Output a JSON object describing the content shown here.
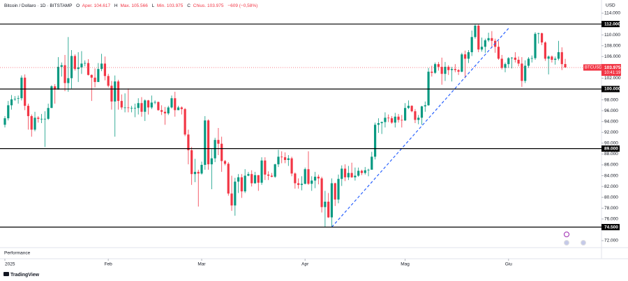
{
  "chart_data": {
    "type": "candlestick",
    "header": {
      "symbol": "Bitcoin / Dollaro · 1D · BITSTAMP",
      "o": "O",
      "open": "Aper. 104.617",
      "h": "H",
      "high": "Max. 105.566",
      "l": "L",
      "low": "Min. 103.975",
      "c": "C",
      "close": "Chius. 103.975",
      "change": "−609 (−0,58%)"
    },
    "currency": "USD",
    "pane_label": "Performance",
    "brand": "TradingView",
    "colors": {
      "up": "#089981",
      "down": "#f23645"
    },
    "xticks": [
      {
        "value": 0,
        "label": "2025"
      },
      {
        "value": 31,
        "label": "Feb"
      },
      {
        "value": 59,
        "label": "Mar"
      },
      {
        "value": 90,
        "label": "Apr"
      },
      {
        "value": 120,
        "label": "Mag"
      },
      {
        "value": 151,
        "label": "Giu"
      }
    ],
    "ylim": [
      72,
      114
    ],
    "yticks": [
      {
        "value": 72,
        "label": "72.000"
      },
      {
        "value": 76,
        "label": "76.000"
      },
      {
        "value": 78,
        "label": "78.000"
      },
      {
        "value": 80,
        "label": "80.000"
      },
      {
        "value": 82,
        "label": "82.000"
      },
      {
        "value": 84,
        "label": "84.000"
      },
      {
        "value": 86,
        "label": "86.000"
      },
      {
        "value": 88,
        "label": "88.000"
      },
      {
        "value": 90,
        "label": "90.000"
      },
      {
        "value": 92,
        "label": "92.000"
      },
      {
        "value": 94,
        "label": "94.000"
      },
      {
        "value": 96,
        "label": "96.000"
      },
      {
        "value": 98,
        "label": "98.000"
      },
      {
        "value": 102,
        "label": "102.000"
      },
      {
        "value": 106,
        "label": "106.000"
      },
      {
        "value": 108,
        "label": "108.000"
      },
      {
        "value": 110,
        "label": "110.000"
      },
      {
        "value": 114,
        "label": "114.000"
      }
    ],
    "levels": [
      {
        "value": 112,
        "label": "112.000"
      },
      {
        "value": 100,
        "label": "100.000"
      },
      {
        "value": 89,
        "label": "89.000"
      },
      {
        "value": 74.5,
        "label": "74.500"
      }
    ],
    "last": {
      "name": "BTCUSD",
      "value": 103.975,
      "label": "103.975",
      "countdown": "10:41:19"
    },
    "trendline": {
      "x": [
        98,
        151
      ],
      "y": [
        74.5,
        111.2
      ]
    },
    "open": [
      93.4,
      94.6,
      97.0,
      98.1,
      98.2,
      98.3,
      102.1,
      96.9,
      95.0,
      92.5,
      94.7,
      94.5,
      94.5,
      94.5,
      96.5,
      100.5,
      99.9,
      104.1,
      104.4,
      101.1,
      102.0,
      106.1,
      103.7,
      104.0,
      104.7,
      104.8,
      102.6,
      102.1,
      101.3,
      103.7,
      104.7,
      102.4,
      100.6,
      97.7,
      101.4,
      97.8,
      96.6,
      96.6,
      96.5,
      96.5,
      96.5,
      97.4,
      95.8,
      97.9,
      96.6,
      97.5,
      97.6,
      96.1,
      95.8,
      95.5,
      96.6,
      98.3,
      96.1,
      96.6,
      96.3,
      91.6,
      88.7,
      84.3,
      84.7,
      84.4,
      86.0,
      94.2,
      86.1,
      87.2,
      90.6,
      89.9,
      86.7,
      86.2,
      80.7,
      78.5,
      82.9,
      83.7,
      81.1,
      84.0,
      84.3,
      82.6,
      84.1,
      82.7,
      86.8,
      84.2,
      84.0,
      83.8,
      86.1,
      87.5,
      87.4,
      86.9,
      87.2,
      84.4,
      82.6,
      82.3,
      82.5,
      85.2,
      82.5,
      83.1,
      83.8,
      83.5,
      78.2,
      79.2,
      76.3,
      82.6,
      79.6,
      83.4,
      85.3,
      83.7,
      84.5,
      83.7,
      84.0,
      84.9,
      84.5,
      85.0,
      85.1,
      87.5,
      93.4,
      93.7,
      93.9,
      94.7,
      94.6,
      93.8,
      94.9,
      94.3,
      94.2,
      96.5,
      96.9,
      95.9,
      94.3,
      94.7,
      96.8,
      97.0,
      103.2,
      103.0,
      104.6,
      104.1,
      102.8,
      104.1,
      103.5,
      103.7,
      103.5,
      103.2,
      106.4,
      105.6,
      106.8,
      109.6,
      111.7,
      107.3,
      107.8,
      109.0,
      109.4,
      108.9,
      107.8,
      105.6,
      103.9,
      104.6,
      105.7,
      105.8,
      105.4,
      104.7,
      101.5,
      104.3,
      105.6,
      105.7,
      110.2,
      110.3,
      108.6,
      105.6,
      106.0,
      105.4,
      105.6,
      106.8,
      104.617
    ],
    "high": [
      95.0,
      97.8,
      98.9,
      98.7,
      98.8,
      102.5,
      102.7,
      97.3,
      95.3,
      95.8,
      95.0,
      95.4,
      95.9,
      97.3,
      100.7,
      100.9,
      105.9,
      104.9,
      106.3,
      109.6,
      107.2,
      106.4,
      106.8,
      107.0,
      105.3,
      105.5,
      102.7,
      103.8,
      104.8,
      106.5,
      106.0,
      102.8,
      101.5,
      102.5,
      101.7,
      99.0,
      99.2,
      100.1,
      96.9,
      97.3,
      98.3,
      98.5,
      98.1,
      98.0,
      98.8,
      97.9,
      97.7,
      97.0,
      96.7,
      96.9,
      98.8,
      99.5,
      96.9,
      96.8,
      96.5,
      92.5,
      89.3,
      87.1,
      85.1,
      86.6,
      95.0,
      94.4,
      88.9,
      91.0,
      92.8,
      91.2,
      86.9,
      86.5,
      84.0,
      83.6,
      84.3,
      84.3,
      85.2,
      84.7,
      85.0,
      84.7,
      84.1,
      87.4,
      87.4,
      84.8,
      84.5,
      86.2,
      88.8,
      88.5,
      88.3,
      87.8,
      87.5,
      84.6,
      83.5,
      83.9,
      85.5,
      88.5,
      83.9,
      84.7,
      84.2,
      83.8,
      81.2,
      80.8,
      83.5,
      82.7,
      84.2,
      85.9,
      86.1,
      85.8,
      86.4,
      85.5,
      85.5,
      85.1,
      85.6,
      85.3,
      88.4,
      93.8,
      94.6,
      94.0,
      95.7,
      95.3,
      95.0,
      95.6,
      95.4,
      95.2,
      97.4,
      97.9,
      97.0,
      96.3,
      95.2,
      96.9,
      97.7,
      103.9,
      104.3,
      104.9,
      105.0,
      105.8,
      105.0,
      104.4,
      104.1,
      104.6,
      103.7,
      106.7,
      107.1,
      107.2,
      110.8,
      111.9,
      111.9,
      109.5,
      109.3,
      110.4,
      110.7,
      109.3,
      108.9,
      106.3,
      104.9,
      105.9,
      105.9,
      106.8,
      106.0,
      105.9,
      105.3,
      105.9,
      106.2,
      110.5,
      110.4,
      110.4,
      108.8,
      106.2,
      106.2,
      106.0,
      108.9,
      107.7,
      105.566
    ],
    "low": [
      92.9,
      94.2,
      96.2,
      97.8,
      97.3,
      97.9,
      96.1,
      92.5,
      91.2,
      92.2,
      93.8,
      93.7,
      89.3,
      94.3,
      96.5,
      97.3,
      99.9,
      102.3,
      99.6,
      99.5,
      100.1,
      103.4,
      101.3,
      102.8,
      104.2,
      102.5,
      97.8,
      100.3,
      101.3,
      103.3,
      101.6,
      100.3,
      96.2,
      91.2,
      96.2,
      96.2,
      95.7,
      95.7,
      95.7,
      94.8,
      95.3,
      94.9,
      94.1,
      95.3,
      96.3,
      97.2,
      96.0,
      95.2,
      93.4,
      95.2,
      96.4,
      94.9,
      96.1,
      95.3,
      91.3,
      86.1,
      82.3,
      82.8,
      78.3,
      84.2,
      85.1,
      85.1,
      81.5,
      86.5,
      87.8,
      84.7,
      85.9,
      80.3,
      77.5,
      76.6,
      80.8,
      79.9,
      80.8,
      83.9,
      82.0,
      82.5,
      81.2,
      82.3,
      83.2,
      83.2,
      83.7,
      83.6,
      85.6,
      86.3,
      86.3,
      85.8,
      83.9,
      81.6,
      81.6,
      81.3,
      82.4,
      82.3,
      81.2,
      81.7,
      82.4,
      77.2,
      74.5,
      76.2,
      74.6,
      78.4,
      78.9,
      82.1,
      83.0,
      83.2,
      83.6,
      83.1,
      83.8,
      84.1,
      84.2,
      83.9,
      85.1,
      87.0,
      91.9,
      91.7,
      92.9,
      93.9,
      93.6,
      92.9,
      93.8,
      92.9,
      94.1,
      96.3,
      95.7,
      93.7,
      93.5,
      93.4,
      95.8,
      96.9,
      102.3,
      102.8,
      103.4,
      100.8,
      101.5,
      102.6,
      101.4,
      103.1,
      102.6,
      103.1,
      102.0,
      104.8,
      106.1,
      109.3,
      106.8,
      106.9,
      106.7,
      108.7,
      107.6,
      106.7,
      105.4,
      103.6,
      103.1,
      103.9,
      103.8,
      104.9,
      104.2,
      100.4,
      101.1,
      103.9,
      104.9,
      105.4,
      108.4,
      108.1,
      105.2,
      102.7,
      104.9,
      104.5,
      105.3,
      103.5,
      103.975
    ],
    "close": [
      94.6,
      97.0,
      98.1,
      98.2,
      98.3,
      102.1,
      96.9,
      95.0,
      92.5,
      94.7,
      94.5,
      94.5,
      94.5,
      96.5,
      100.5,
      99.9,
      104.1,
      104.4,
      101.1,
      102.0,
      106.1,
      103.7,
      104.0,
      104.7,
      104.8,
      102.6,
      102.1,
      101.3,
      103.7,
      104.7,
      102.4,
      100.6,
      97.7,
      101.4,
      97.8,
      96.6,
      96.6,
      96.5,
      96.5,
      96.5,
      97.4,
      95.8,
      97.9,
      96.6,
      97.5,
      97.6,
      96.1,
      95.8,
      95.5,
      96.6,
      98.3,
      96.1,
      96.6,
      96.3,
      91.6,
      88.7,
      84.3,
      84.7,
      84.4,
      86.0,
      94.2,
      86.1,
      87.2,
      90.6,
      89.9,
      86.7,
      86.2,
      80.7,
      78.5,
      82.9,
      83.7,
      81.1,
      84.0,
      84.3,
      82.6,
      84.1,
      82.7,
      86.8,
      84.2,
      84.0,
      83.8,
      86.1,
      87.5,
      87.4,
      86.9,
      87.2,
      84.4,
      82.6,
      82.3,
      82.5,
      85.2,
      82.5,
      83.1,
      83.8,
      83.5,
      78.2,
      79.2,
      76.3,
      82.6,
      79.6,
      83.4,
      85.3,
      83.7,
      84.5,
      83.7,
      84.0,
      84.9,
      84.5,
      85.0,
      85.1,
      87.5,
      93.4,
      93.7,
      93.9,
      94.7,
      94.6,
      93.8,
      94.9,
      94.3,
      94.2,
      96.5,
      96.9,
      95.9,
      94.3,
      94.7,
      96.8,
      97.0,
      103.2,
      103.0,
      104.6,
      104.1,
      102.8,
      104.1,
      103.5,
      103.7,
      103.5,
      103.2,
      106.4,
      105.6,
      106.8,
      109.6,
      111.7,
      107.3,
      107.8,
      109.0,
      109.4,
      108.9,
      107.8,
      105.6,
      103.9,
      104.6,
      105.7,
      105.8,
      105.4,
      104.7,
      101.5,
      104.3,
      105.6,
      105.7,
      110.2,
      110.3,
      108.6,
      105.6,
      106.0,
      105.4,
      105.6,
      106.8,
      104.6,
      103.975
    ]
  }
}
